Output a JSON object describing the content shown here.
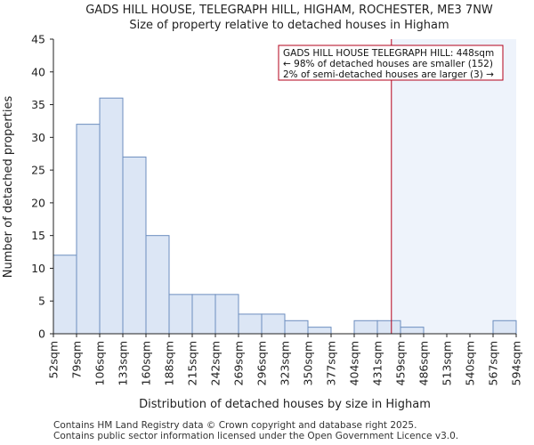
{
  "chart_data": {
    "type": "bar",
    "title": "GADS HILL HOUSE, TELEGRAPH HILL, HIGHAM, ROCHESTER, ME3 7NW",
    "subtitle": "Size of property relative to detached houses in Higham",
    "xlabel": "Distribution of detached houses by size in Higham",
    "ylabel": "Number of detached properties",
    "bin_edges": [
      "52sqm",
      "79sqm",
      "106sqm",
      "133sqm",
      "160sqm",
      "188sqm",
      "215sqm",
      "242sqm",
      "269sqm",
      "296sqm",
      "323sqm",
      "350sqm",
      "377sqm",
      "404sqm",
      "431sqm",
      "459sqm",
      "486sqm",
      "513sqm",
      "540sqm",
      "567sqm",
      "594sqm"
    ],
    "values": [
      12,
      32,
      36,
      27,
      15,
      6,
      6,
      6,
      3,
      3,
      2,
      1,
      0,
      2,
      2,
      1,
      0,
      0,
      0,
      2
    ],
    "ylim": [
      0,
      45
    ],
    "yticks": [
      0,
      5,
      10,
      15,
      20,
      25,
      30,
      35,
      40,
      45
    ],
    "marker_value_sqm": 448,
    "annotation": {
      "line1": "GADS HILL HOUSE TELEGRAPH HILL: 448sqm",
      "line2": "← 98% of detached houses are smaller (152)",
      "line3": "2% of semi-detached houses are larger (3) →"
    },
    "grid": false,
    "colors": {
      "bar_fill": "#dce6f5",
      "bar_edge": "#6c8ebf",
      "marker": "#b3001b",
      "highlight": "#eef3fb"
    }
  },
  "footer": {
    "line1": "Contains HM Land Registry data © Crown copyright and database right 2025.",
    "line2": "Contains public sector information licensed under the Open Government Licence v3.0."
  }
}
